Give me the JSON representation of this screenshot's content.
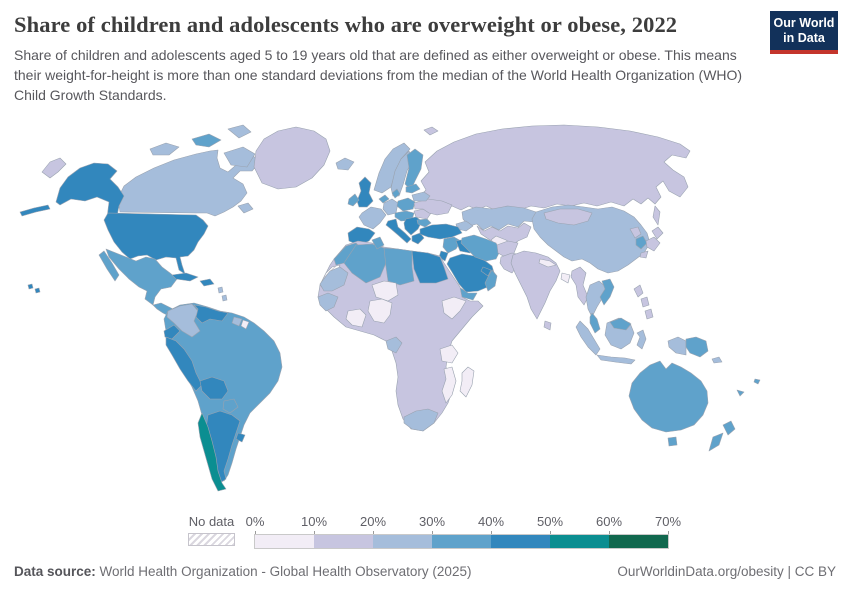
{
  "header": {
    "title": "Share of children and adolescents who are overweight or obese, 2022",
    "subtitle": "Share of children and adolescents aged 5 to 19 years old that are defined as either overweight or obese. This means their weight-for-height is more than one standard deviations from the median of the World Health Organization (WHO) Child Growth Standards.",
    "logo": {
      "line1": "Our World",
      "line2": "in Data",
      "bg_color": "#12315a",
      "accent_color": "#c4352c"
    }
  },
  "legend": {
    "no_data_label": "No data",
    "tick_labels": [
      "0%",
      "10%",
      "20%",
      "30%",
      "40%",
      "50%",
      "60%",
      "70%"
    ],
    "colors": [
      "#f2edf6",
      "#c7c5e0",
      "#a5bddb",
      "#5fa2cb",
      "#3287bd",
      "#0b8e91",
      "#11684e"
    ]
  },
  "map": {
    "ocean_color": "#ffffff",
    "border_color": "#9aa3b0",
    "bucket_colors": [
      "#f2edf6",
      "#c7c5e0",
      "#a5bddb",
      "#5fa2cb",
      "#3287bd",
      "#0b8e91",
      "#11684e"
    ],
    "regions": {
      "russia": 1,
      "sakhalin": 1,
      "chukotka": 1,
      "svalbard": 1,
      "kazakhstan": 2,
      "central_asia": 1,
      "turkmenistan": 0,
      "caucasus": 2,
      "norway": 2,
      "sweden": 2,
      "finland": 3,
      "iceland": 2,
      "uk": 4,
      "ireland": 3,
      "france": 2,
      "iberia": 4,
      "germany": 2,
      "benelux": 3,
      "denmark": 3,
      "poland": 3,
      "central_europe": 3,
      "italy": 4,
      "balkans": 4,
      "greece": 4,
      "romania": 1,
      "bulgaria": 3,
      "ukraine": 1,
      "belarus": 2,
      "baltics": 3,
      "turkey": 4,
      "syria": 3,
      "israel_jordan": 4,
      "iraq": 4,
      "saudi_arabia": 4,
      "yemen": 3,
      "oman": 3,
      "gulf_states": 4,
      "iran": 3,
      "afghanistan": 1,
      "pakistan": 1,
      "india": 1,
      "sri_lanka": 1,
      "nepal": 0,
      "bangladesh": 0,
      "myanmar": 1,
      "china": 2,
      "mongolia": 1,
      "north_korea": 1,
      "south_korea": 3,
      "japan": 1,
      "thailand": 2,
      "vietnam": 3,
      "malaysia": 3,
      "indonesia": 2,
      "borneo_malaysia": 3,
      "philippines": 1,
      "west_papua": 2,
      "papua_new_guinea": 3,
      "solomon_islands": 2,
      "fiji": 3,
      "new_caledonia": 3,
      "australia": 3,
      "tasmania": 3,
      "new_zealand": 3,
      "africa_other": 1,
      "morocco": 3,
      "western_sahara": "no_data",
      "algeria": 3,
      "tunisia": 3,
      "libya": 3,
      "egypt": 4,
      "mauritania": 2,
      "niger": 0,
      "nigeria": 0,
      "ghana_ivory_coast": 0,
      "senegal_guinea": 2,
      "ethiopia": 0,
      "tanzania": 0,
      "mozambique": 0,
      "madagascar": 0,
      "south_africa": 2,
      "gabon_congo": 2,
      "canada": 2,
      "canada_islands": 2,
      "canada_islands_2": 3,
      "newfoundland": 2,
      "greenland": 1,
      "alaska": 4,
      "aleutians": 4,
      "usa": 4,
      "hawaii": 4,
      "mexico": 3,
      "central_america": 3,
      "panama_costa_rica": 4,
      "cuba": 4,
      "hispaniola": 4,
      "lesser_antilles": 2,
      "brazil": 3,
      "colombia": 2,
      "venezuela": 4,
      "suriname": 2,
      "french_guiana": 0,
      "ecuador": 4,
      "peru": 4,
      "bolivia": 4,
      "paraguay": 3,
      "argentina": 4,
      "chile": 5,
      "uruguay": 4
    }
  },
  "chart_data": {
    "type": "choropleth_map",
    "title": "Share of children and adolescents who are overweight or obese, 2022",
    "unit": "%",
    "bins": [
      "0-10%",
      "10-20%",
      "20-30%",
      "30-40%",
      "40-50%",
      "50-60%",
      "60-70%"
    ],
    "legend_position": "bottom",
    "notes": "Region keys in map.regions hold the bin index (0 = 0-10% ... 6 = 60-70%) or no_data"
  },
  "footer": {
    "source_label": "Data source:",
    "source_value": " World Health Organization - Global Health Observatory (2025)",
    "link": "OurWorldinData.org/obesity | CC BY"
  }
}
